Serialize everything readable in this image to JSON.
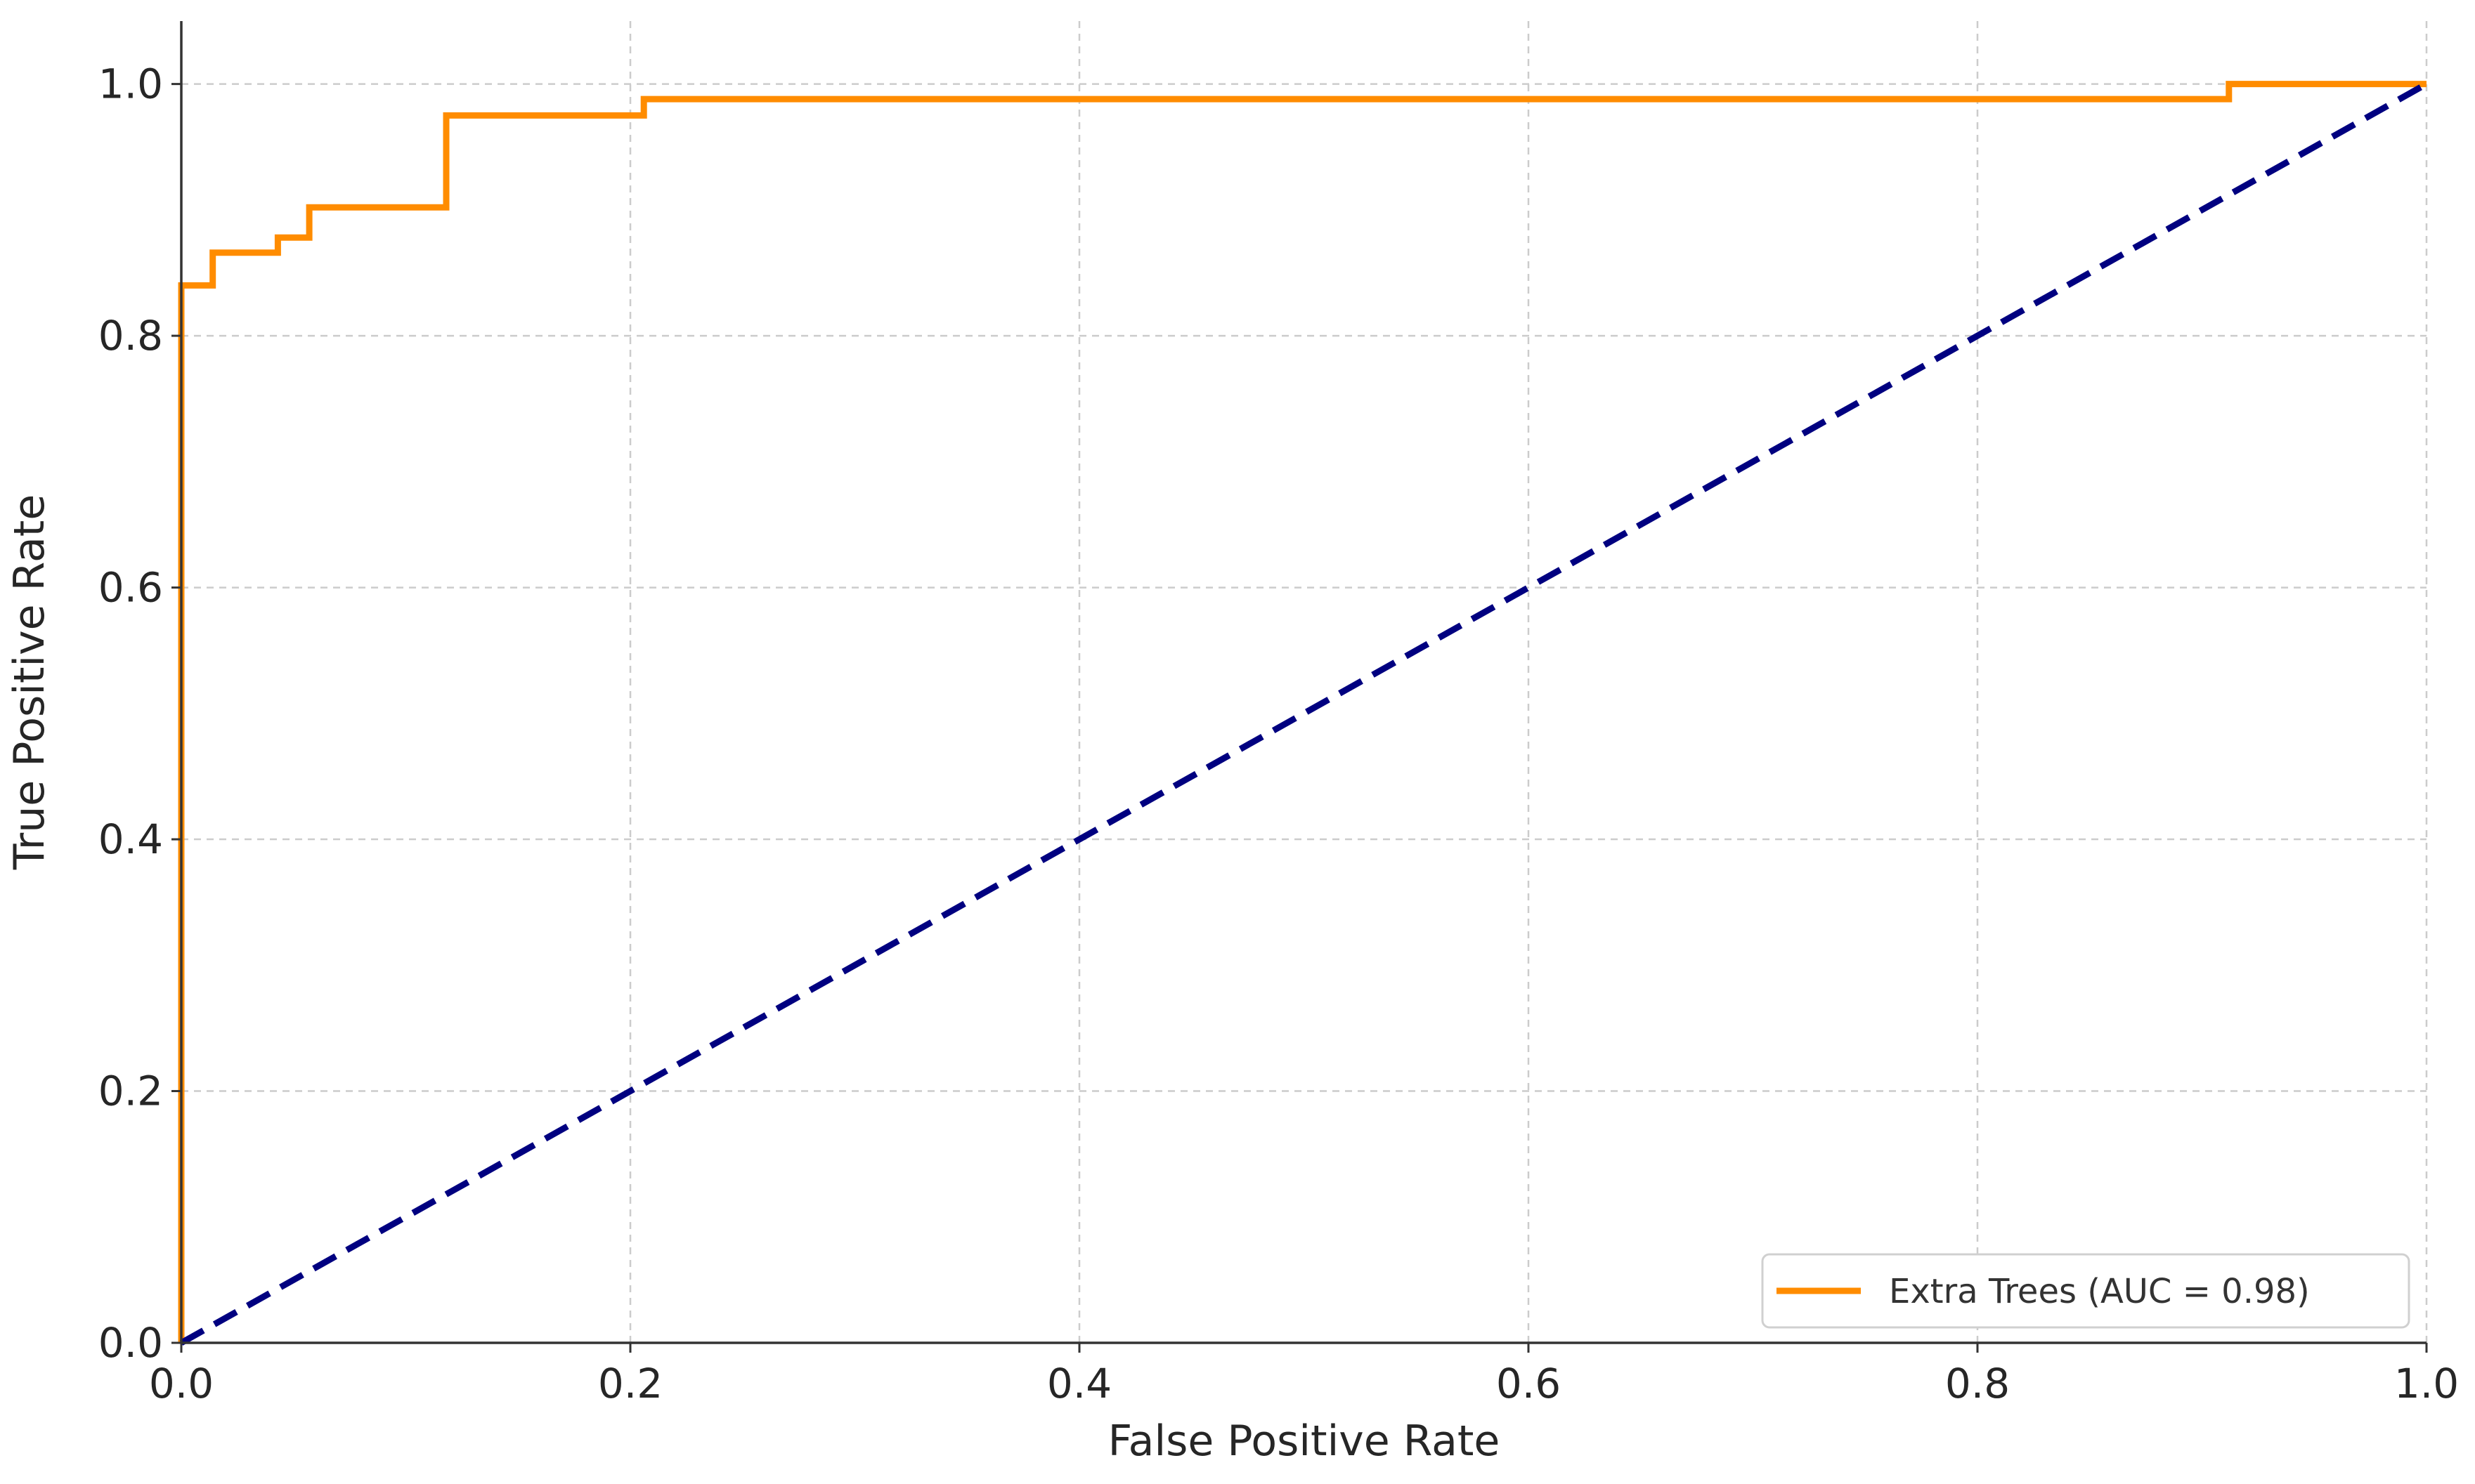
{
  "chart_data": {
    "type": "line",
    "title": "",
    "xlabel": "False Positive Rate",
    "ylabel": "True Positive Rate",
    "xlim": [
      0.0,
      1.0
    ],
    "ylim": [
      0.0,
      1.05
    ],
    "xticks": [
      "0.0",
      "0.2",
      "0.4",
      "0.6",
      "0.8",
      "1.0"
    ],
    "yticks": [
      "0.0",
      "0.2",
      "0.4",
      "0.6",
      "0.8",
      "1.0"
    ],
    "grid": true,
    "legend_position": "lower right",
    "series": [
      {
        "name": "Extra Trees (AUC = 0.98)",
        "color": "#ff8c00",
        "style": "solid-step",
        "x": [
          0.0,
          0.0,
          0.014,
          0.014,
          0.043,
          0.043,
          0.057,
          0.057,
          0.118,
          0.118,
          0.206,
          0.206,
          0.912,
          0.912,
          1.0
        ],
        "y": [
          0.0,
          0.84,
          0.84,
          0.866,
          0.866,
          0.878,
          0.878,
          0.902,
          0.902,
          0.975,
          0.975,
          0.988,
          0.988,
          1.0,
          1.0
        ]
      },
      {
        "name": "",
        "color": "#000080",
        "style": "dashed",
        "x": [
          0.0,
          1.0
        ],
        "y": [
          0.0,
          1.0
        ]
      }
    ]
  }
}
